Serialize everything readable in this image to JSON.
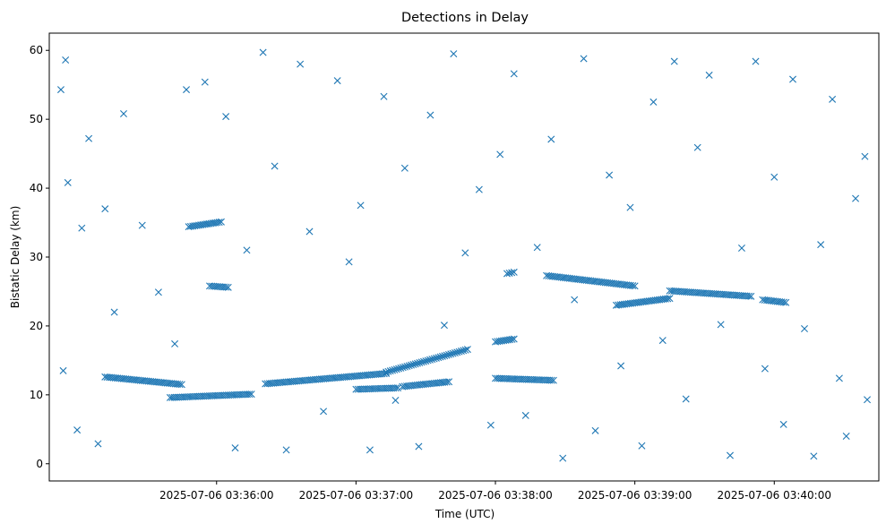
{
  "chart_data": {
    "type": "scatter",
    "title": "Detections in Delay",
    "xlabel": "Time (UTC)",
    "ylabel": "Bistatic Delay (km)",
    "x_axis": "time",
    "xlim": [
      "2025-07-06 03:34:48",
      "2025-07-06 03:40:45"
    ],
    "ylim": [
      -2.5,
      62.5
    ],
    "xticks": [
      {
        "value": "2025-07-06 03:36:00",
        "label": "2025-07-06 03:36:00"
      },
      {
        "value": "2025-07-06 03:37:00",
        "label": "2025-07-06 03:37:00"
      },
      {
        "value": "2025-07-06 03:38:00",
        "label": "2025-07-06 03:38:00"
      },
      {
        "value": "2025-07-06 03:39:00",
        "label": "2025-07-06 03:39:00"
      },
      {
        "value": "2025-07-06 03:40:00",
        "label": "2025-07-06 03:40:00"
      }
    ],
    "yticks": [
      0,
      10,
      20,
      30,
      40,
      50,
      60
    ],
    "grid": false,
    "legend": "none",
    "marker": "x",
    "color": "#1f77b4",
    "track_series": [
      {
        "x_start": "2025-07-06 03:35:12",
        "x_end": "2025-07-06 03:35:45",
        "y_start": 12.6,
        "y_end": 11.5
      },
      {
        "x_start": "2025-07-06 03:35:40",
        "x_end": "2025-07-06 03:36:15",
        "y_start": 9.6,
        "y_end": 10.1
      },
      {
        "x_start": "2025-07-06 03:35:48",
        "x_end": "2025-07-06 03:36:02",
        "y_start": 34.4,
        "y_end": 35.1
      },
      {
        "x_start": "2025-07-06 03:35:57",
        "x_end": "2025-07-06 03:36:05",
        "y_start": 25.8,
        "y_end": 25.6
      },
      {
        "x_start": "2025-07-06 03:36:21",
        "x_end": "2025-07-06 03:37:13",
        "y_start": 11.6,
        "y_end": 13.1
      },
      {
        "x_start": "2025-07-06 03:37:13",
        "x_end": "2025-07-06 03:37:48",
        "y_start": 13.3,
        "y_end": 16.6
      },
      {
        "x_start": "2025-07-06 03:37:00",
        "x_end": "2025-07-06 03:37:18",
        "y_start": 10.8,
        "y_end": 11.0
      },
      {
        "x_start": "2025-07-06 03:37:20",
        "x_end": "2025-07-06 03:37:40",
        "y_start": 11.2,
        "y_end": 11.9
      },
      {
        "x_start": "2025-07-06 03:38:00",
        "x_end": "2025-07-06 03:38:25",
        "y_start": 12.4,
        "y_end": 12.1
      },
      {
        "x_start": "2025-07-06 03:38:00",
        "x_end": "2025-07-06 03:38:08",
        "y_start": 17.7,
        "y_end": 18.1
      },
      {
        "x_start": "2025-07-06 03:38:05",
        "x_end": "2025-07-06 03:38:08",
        "y_start": 27.6,
        "y_end": 27.8
      },
      {
        "x_start": "2025-07-06 03:38:22",
        "x_end": "2025-07-06 03:39:00",
        "y_start": 27.3,
        "y_end": 25.8
      },
      {
        "x_start": "2025-07-06 03:38:52",
        "x_end": "2025-07-06 03:39:15",
        "y_start": 23.0,
        "y_end": 24.0
      },
      {
        "x_start": "2025-07-06 03:39:15",
        "x_end": "2025-07-06 03:39:50",
        "y_start": 25.1,
        "y_end": 24.3
      },
      {
        "x_start": "2025-07-06 03:39:55",
        "x_end": "2025-07-06 03:40:05",
        "y_start": 23.8,
        "y_end": 23.4
      }
    ],
    "clutter_sample": [
      [
        "2025-07-06 03:34:53",
        54.3
      ],
      [
        "2025-07-06 03:34:54",
        13.5
      ],
      [
        "2025-07-06 03:34:55",
        58.6
      ],
      [
        "2025-07-06 03:34:56",
        40.8
      ],
      [
        "2025-07-06 03:35:00",
        4.9
      ],
      [
        "2025-07-06 03:35:02",
        34.2
      ],
      [
        "2025-07-06 03:35:05",
        47.2
      ],
      [
        "2025-07-06 03:35:09",
        2.9
      ],
      [
        "2025-07-06 03:35:12",
        37.0
      ],
      [
        "2025-07-06 03:35:16",
        22.0
      ],
      [
        "2025-07-06 03:35:20",
        50.8
      ],
      [
        "2025-07-06 03:35:28",
        34.6
      ],
      [
        "2025-07-06 03:35:35",
        24.9
      ],
      [
        "2025-07-06 03:35:42",
        17.4
      ],
      [
        "2025-07-06 03:35:47",
        54.3
      ],
      [
        "2025-07-06 03:35:55",
        55.4
      ],
      [
        "2025-07-06 03:36:04",
        50.4
      ],
      [
        "2025-07-06 03:36:08",
        2.3
      ],
      [
        "2025-07-06 03:36:13",
        31.0
      ],
      [
        "2025-07-06 03:36:20",
        59.7
      ],
      [
        "2025-07-06 03:36:25",
        43.2
      ],
      [
        "2025-07-06 03:36:30",
        2.0
      ],
      [
        "2025-07-06 03:36:36",
        58.0
      ],
      [
        "2025-07-06 03:36:40",
        33.7
      ],
      [
        "2025-07-06 03:36:46",
        7.6
      ],
      [
        "2025-07-06 03:36:52",
        55.6
      ],
      [
        "2025-07-06 03:36:57",
        29.3
      ],
      [
        "2025-07-06 03:37:02",
        37.5
      ],
      [
        "2025-07-06 03:37:06",
        2.0
      ],
      [
        "2025-07-06 03:37:12",
        53.3
      ],
      [
        "2025-07-06 03:37:17",
        9.2
      ],
      [
        "2025-07-06 03:37:21",
        42.9
      ],
      [
        "2025-07-06 03:37:27",
        2.5
      ],
      [
        "2025-07-06 03:37:32",
        50.6
      ],
      [
        "2025-07-06 03:37:38",
        20.1
      ],
      [
        "2025-07-06 03:37:42",
        59.5
      ],
      [
        "2025-07-06 03:37:47",
        30.6
      ],
      [
        "2025-07-06 03:37:53",
        39.8
      ],
      [
        "2025-07-06 03:37:58",
        5.6
      ],
      [
        "2025-07-06 03:38:02",
        44.9
      ],
      [
        "2025-07-06 03:38:08",
        56.6
      ],
      [
        "2025-07-06 03:38:13",
        7.0
      ],
      [
        "2025-07-06 03:38:18",
        31.4
      ],
      [
        "2025-07-06 03:38:24",
        47.1
      ],
      [
        "2025-07-06 03:38:29",
        0.8
      ],
      [
        "2025-07-06 03:38:34",
        23.8
      ],
      [
        "2025-07-06 03:38:38",
        58.8
      ],
      [
        "2025-07-06 03:38:43",
        4.8
      ],
      [
        "2025-07-06 03:38:49",
        41.9
      ],
      [
        "2025-07-06 03:38:54",
        14.2
      ],
      [
        "2025-07-06 03:38:58",
        37.2
      ],
      [
        "2025-07-06 03:39:03",
        2.6
      ],
      [
        "2025-07-06 03:39:08",
        52.5
      ],
      [
        "2025-07-06 03:39:12",
        17.9
      ],
      [
        "2025-07-06 03:39:17",
        58.4
      ],
      [
        "2025-07-06 03:39:22",
        9.4
      ],
      [
        "2025-07-06 03:39:27",
        45.9
      ],
      [
        "2025-07-06 03:39:32",
        56.4
      ],
      [
        "2025-07-06 03:39:37",
        20.2
      ],
      [
        "2025-07-06 03:39:41",
        1.2
      ],
      [
        "2025-07-06 03:39:46",
        31.3
      ],
      [
        "2025-07-06 03:39:52",
        58.4
      ],
      [
        "2025-07-06 03:39:56",
        13.8
      ],
      [
        "2025-07-06 03:40:00",
        41.6
      ],
      [
        "2025-07-06 03:40:04",
        5.7
      ],
      [
        "2025-07-06 03:40:08",
        55.8
      ],
      [
        "2025-07-06 03:40:13",
        19.6
      ],
      [
        "2025-07-06 03:40:17",
        1.1
      ],
      [
        "2025-07-06 03:40:20",
        31.8
      ],
      [
        "2025-07-06 03:40:25",
        52.9
      ],
      [
        "2025-07-06 03:40:28",
        12.4
      ],
      [
        "2025-07-06 03:40:31",
        4.0
      ],
      [
        "2025-07-06 03:40:35",
        38.5
      ],
      [
        "2025-07-06 03:40:39",
        44.6
      ],
      [
        "2025-07-06 03:40:40",
        9.3
      ]
    ]
  }
}
